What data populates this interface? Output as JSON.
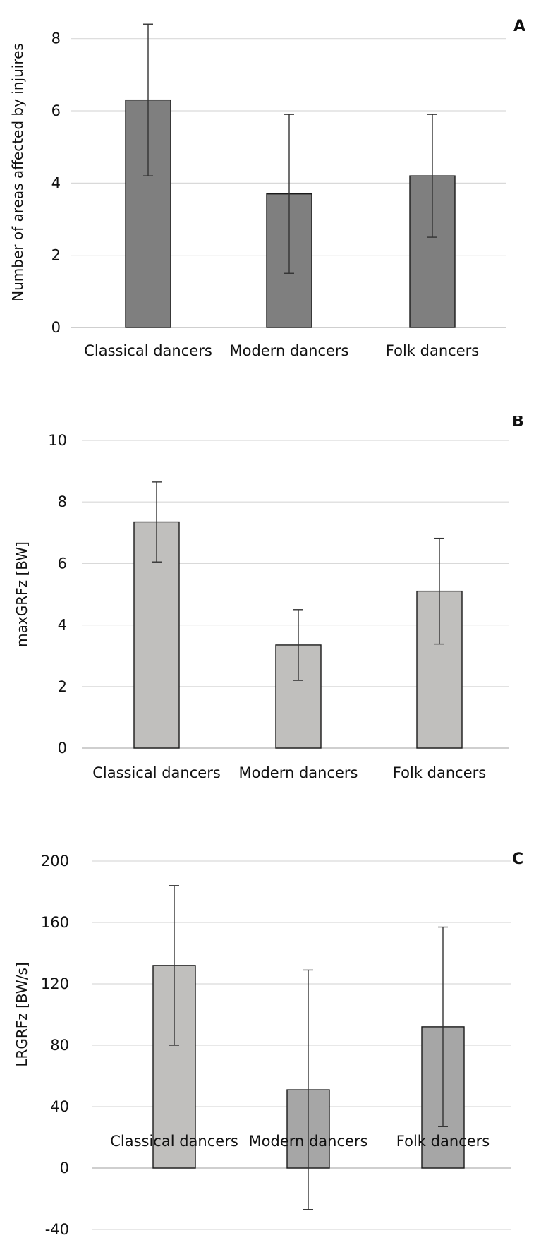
{
  "chart_data": [
    {
      "type": "bar",
      "panel_label": "A",
      "categories": [
        "Classical dancers",
        "Modern dancers",
        "Folk dancers"
      ],
      "values": [
        6.3,
        3.7,
        4.2
      ],
      "errors": [
        2.1,
        2.2,
        1.7
      ],
      "ylabel": "Number of areas affected by injuires",
      "xlabel": "",
      "ylim": [
        0,
        8.6
      ],
      "yticks": [
        0,
        2,
        4,
        6,
        8
      ],
      "grid": true,
      "bar_color": "#7f7f7f"
    },
    {
      "type": "bar",
      "panel_label": "B",
      "categories": [
        "Classical dancers",
        "Modern dancers",
        "Folk dancers"
      ],
      "values": [
        7.35,
        3.35,
        5.1
      ],
      "errors": [
        1.3,
        1.15,
        1.72
      ],
      "ylabel": "maxGRFz [BW]",
      "xlabel": "",
      "ylim": [
        0,
        10
      ],
      "yticks": [
        0,
        2,
        4,
        6,
        8,
        10
      ],
      "grid": true,
      "bar_color": "#c0bfbd"
    },
    {
      "type": "bar",
      "panel_label": "C",
      "categories": [
        "Classical dancers",
        "Modern dancers",
        "Folk dancers"
      ],
      "values": [
        132,
        51,
        92
      ],
      "errors": [
        52,
        78,
        65
      ],
      "ylabel": "LRGRFz [BW/s]",
      "xlabel": "",
      "ylim": [
        -40,
        200
      ],
      "yticks": [
        -40,
        0,
        40,
        80,
        120,
        160,
        200
      ],
      "grid": true,
      "bar_colors": [
        "#c0bfbd",
        "#a6a6a6",
        "#a6a6a6"
      ]
    }
  ]
}
